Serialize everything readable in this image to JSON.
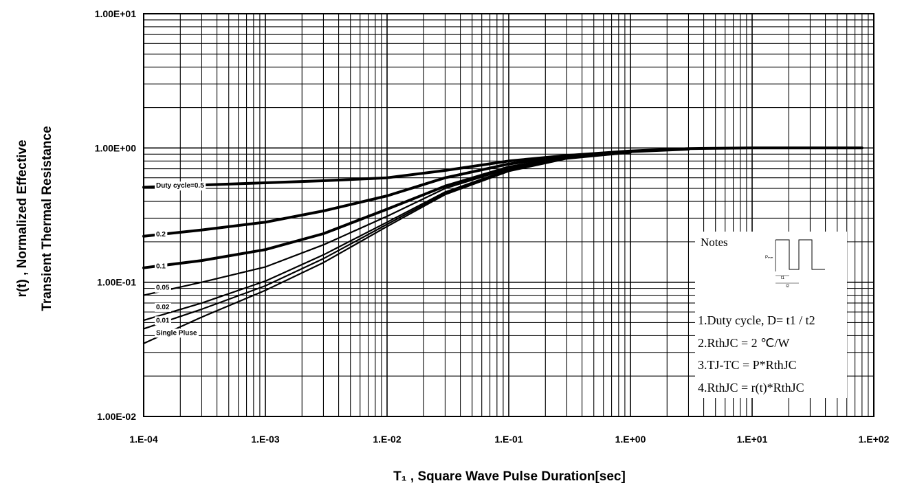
{
  "chart_data": {
    "type": "line",
    "x_scale": "log",
    "y_scale": "log",
    "xlim": [
      0.0001,
      100
    ],
    "ylim": [
      0.01,
      10
    ],
    "grid": true,
    "xlabel": "T₁ , Square Wave Pulse Duration[sec]",
    "ylabel_lines": [
      "r(t) , Normalized Effective",
      "Transient Thermal Resistance"
    ],
    "x_ticks": [
      {
        "value": 0.0001,
        "label": "1.E-04"
      },
      {
        "value": 0.001,
        "label": "1.E-03"
      },
      {
        "value": 0.01,
        "label": "1.E-02"
      },
      {
        "value": 0.1,
        "label": "1.E-01"
      },
      {
        "value": 1,
        "label": "1.E+00"
      },
      {
        "value": 10,
        "label": "1.E+01"
      },
      {
        "value": 100,
        "label": "1.E+02"
      }
    ],
    "y_ticks": [
      {
        "value": 10,
        "label": "1.00E+01"
      },
      {
        "value": 1,
        "label": "1.00E+00"
      },
      {
        "value": 0.1,
        "label": "1.00E-01"
      },
      {
        "value": 0.01,
        "label": "1.00E-02"
      }
    ],
    "series": [
      {
        "name": "Duty cycle=0.5",
        "label": "Duty cycle=0.5",
        "label_at": {
          "x": 0.00012,
          "y": 0.53
        },
        "thick": true,
        "points": [
          [
            0.0001,
            0.51
          ],
          [
            0.0003,
            0.53
          ],
          [
            0.001,
            0.55
          ],
          [
            0.003,
            0.57
          ],
          [
            0.01,
            0.6
          ],
          [
            0.03,
            0.68
          ],
          [
            0.1,
            0.8
          ],
          [
            0.3,
            0.88
          ],
          [
            1,
            0.95
          ],
          [
            3,
            0.99
          ],
          [
            10,
            1.0
          ],
          [
            80,
            1.0
          ]
        ]
      },
      {
        "name": "0.2",
        "label": "0.2",
        "label_at": {
          "x": 0.00012,
          "y": 0.23
        },
        "thick": true,
        "points": [
          [
            0.0001,
            0.22
          ],
          [
            0.0003,
            0.245
          ],
          [
            0.001,
            0.28
          ],
          [
            0.003,
            0.34
          ],
          [
            0.01,
            0.44
          ],
          [
            0.03,
            0.6
          ],
          [
            0.1,
            0.76
          ],
          [
            0.3,
            0.87
          ],
          [
            1,
            0.94
          ],
          [
            3,
            0.98
          ]
        ]
      },
      {
        "name": "0.1",
        "label": "0.1",
        "label_at": {
          "x": 0.00012,
          "y": 0.133
        },
        "thick": true,
        "points": [
          [
            0.0001,
            0.128
          ],
          [
            0.0003,
            0.145
          ],
          [
            0.001,
            0.175
          ],
          [
            0.003,
            0.23
          ],
          [
            0.01,
            0.35
          ],
          [
            0.03,
            0.52
          ],
          [
            0.1,
            0.72
          ],
          [
            0.3,
            0.85
          ],
          [
            1,
            0.93
          ]
        ]
      },
      {
        "name": "0.05",
        "label": "0.05",
        "label_at": {
          "x": 0.00012,
          "y": 0.092
        },
        "thick": false,
        "points": [
          [
            0.0001,
            0.08
          ],
          [
            0.0003,
            0.1
          ],
          [
            0.001,
            0.13
          ],
          [
            0.003,
            0.19
          ],
          [
            0.01,
            0.31
          ],
          [
            0.03,
            0.5
          ],
          [
            0.1,
            0.7
          ],
          [
            0.3,
            0.85
          ],
          [
            1,
            0.93
          ]
        ]
      },
      {
        "name": "0.02",
        "label": "0.02",
        "label_at": {
          "x": 0.00012,
          "y": 0.066
        },
        "thick": false,
        "points": [
          [
            0.0001,
            0.052
          ],
          [
            0.0003,
            0.07
          ],
          [
            0.001,
            0.102
          ],
          [
            0.003,
            0.16
          ],
          [
            0.01,
            0.28
          ],
          [
            0.03,
            0.47
          ],
          [
            0.1,
            0.69
          ],
          [
            0.3,
            0.84
          ],
          [
            1,
            0.92
          ]
        ]
      },
      {
        "name": "0.01",
        "label": "0.01",
        "label_at": {
          "x": 0.00012,
          "y": 0.0525
        },
        "thick": false,
        "points": [
          [
            0.0001,
            0.045
          ],
          [
            0.0003,
            0.063
          ],
          [
            0.001,
            0.094
          ],
          [
            0.003,
            0.15
          ],
          [
            0.01,
            0.27
          ],
          [
            0.03,
            0.46
          ],
          [
            0.1,
            0.68
          ],
          [
            0.3,
            0.84
          ],
          [
            1,
            0.92
          ]
        ]
      },
      {
        "name": "Single Pluse",
        "label": "Single Pluse",
        "label_at": {
          "x": 0.00012,
          "y": 0.0425
        },
        "thick": false,
        "points": [
          [
            0.0001,
            0.035
          ],
          [
            0.0003,
            0.055
          ],
          [
            0.001,
            0.087
          ],
          [
            0.003,
            0.14
          ],
          [
            0.01,
            0.26
          ],
          [
            0.03,
            0.45
          ],
          [
            0.1,
            0.67
          ],
          [
            0.3,
            0.83
          ],
          [
            1,
            0.92
          ]
        ]
      }
    ]
  },
  "notes": {
    "title": "Notes",
    "pulse_labels": {
      "p": "Pₘₘ",
      "t1": "t1",
      "t2": "t2"
    },
    "lines": [
      "1.Duty cycle, D= t1 / t2",
      "2.RthJC =    2  ℃/W",
      "3.TJ-TC = P*RthJC",
      "4.RthJC = r(t)*RthJC"
    ]
  }
}
